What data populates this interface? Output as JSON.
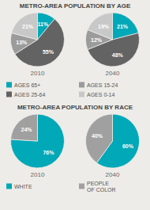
{
  "chart_data": [
    {
      "type": "pie",
      "title": "METRO-AREA POPULATION BY AGE",
      "categories": [
        "AGES 65+",
        "AGES 25-64",
        "AGES 15-24",
        "AGES 0-14"
      ],
      "colors": [
        "#00a8b8",
        "#636363",
        "#9b9b9b",
        "#c8c8c8"
      ],
      "data_labels": true,
      "series": [
        {
          "name": "2010",
          "values": [
            11,
            55,
            13,
            21
          ],
          "value_labels": [
            "11%",
            "55%",
            "13%",
            "21%"
          ]
        },
        {
          "name": "2040",
          "values": [
            21,
            48,
            12,
            19
          ],
          "value_labels": [
            "21%",
            "48%",
            "12%",
            "19%"
          ]
        }
      ]
    },
    {
      "type": "pie",
      "title": "METRO-AREA POPULATION BY RACE",
      "categories": [
        "WHITE",
        "PEOPLE\nOF COLOR"
      ],
      "colors": [
        "#00a8b8",
        "#a0a0a0"
      ],
      "data_labels": true,
      "series": [
        {
          "name": "2010",
          "values": [
            76,
            24
          ],
          "value_labels": [
            "76%",
            "24%"
          ]
        },
        {
          "name": "2040",
          "values": [
            60,
            40
          ],
          "value_labels": [
            "60%",
            "40%"
          ]
        }
      ]
    }
  ]
}
